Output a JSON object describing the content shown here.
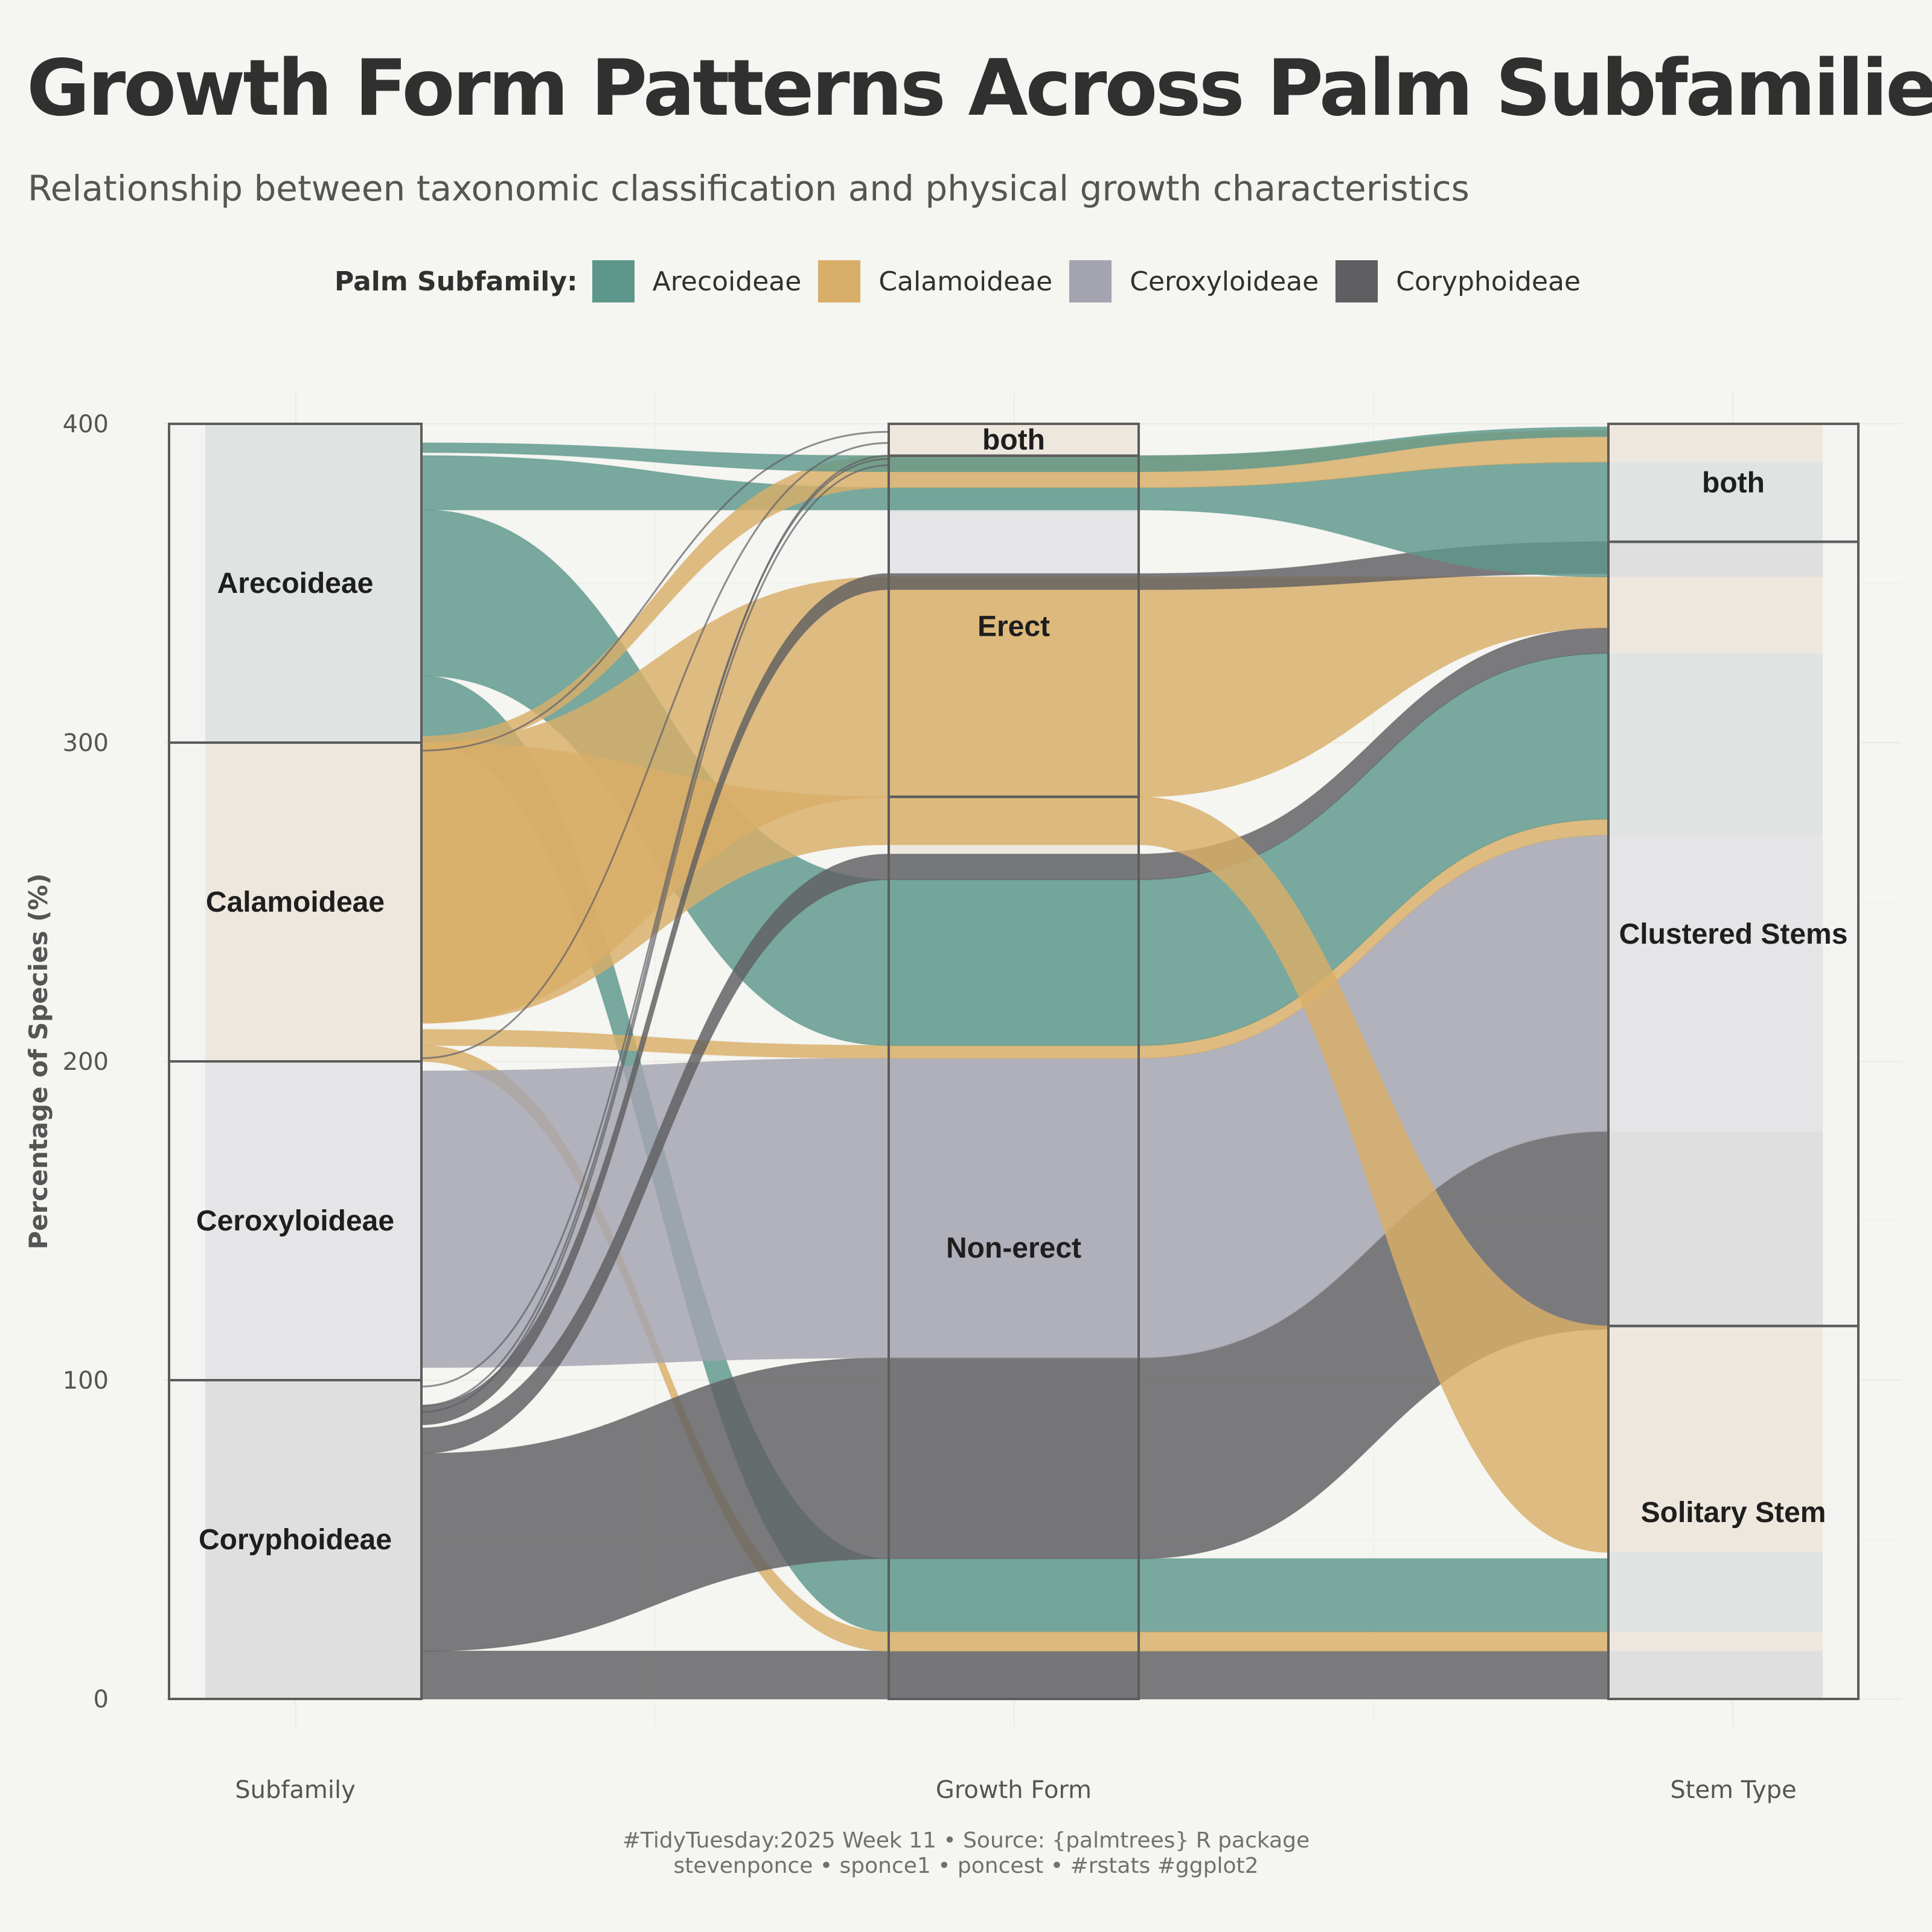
{
  "header": {
    "title": "Growth Form Patterns Across Palm Subfamilies",
    "subtitle": "Relationship between taxonomic classification and physical growth characteristics"
  },
  "legend": {
    "title": "Palm Subfamily:",
    "items": [
      {
        "label": "Arecoideae",
        "color": "#5d978b"
      },
      {
        "label": "Calamoideae",
        "color": "#d9ae68"
      },
      {
        "label": "Ceroxyloideae",
        "color": "#a3a4b0"
      },
      {
        "label": "Coryphoideae",
        "color": "#5f5f62"
      }
    ]
  },
  "chart_data": {
    "type": "alluvial",
    "ylabel": "Percentage of Species (%)",
    "ylim": [
      0,
      400
    ],
    "yticks": [
      0,
      100,
      200,
      300,
      400
    ],
    "grid": true,
    "axes": [
      {
        "label": "Subfamily",
        "strata": [
          {
            "name": "Coryphoideae",
            "from": 0,
            "to": 100
          },
          {
            "name": "Ceroxyloideae",
            "from": 100,
            "to": 200
          },
          {
            "name": "Calamoideae",
            "from": 200,
            "to": 300
          },
          {
            "name": "Arecoideae",
            "from": 300,
            "to": 400
          }
        ]
      },
      {
        "label": "Growth Form",
        "strata": [
          {
            "name": "Non-erect",
            "from": 0,
            "to": 283
          },
          {
            "name": "Erect",
            "from": 283,
            "to": 390
          },
          {
            "name": "both",
            "from": 390,
            "to": 400
          }
        ]
      },
      {
        "label": "Stem Type",
        "strata": [
          {
            "name": "Solitary Stem",
            "from": 0,
            "to": 117
          },
          {
            "name": "Clustered Stems",
            "from": 117,
            "to": 363
          },
          {
            "name": "both",
            "from": 363,
            "to": 400
          }
        ]
      }
    ],
    "flows": [
      {
        "subfamily": "Coryphoideae",
        "stops": [
          [
            0,
            15
          ],
          [
            0,
            15
          ],
          [
            0,
            15
          ]
        ]
      },
      {
        "subfamily": "Arecoideae",
        "stops": [
          [
            300,
            321
          ],
          [
            21,
            44
          ],
          [
            21,
            44
          ]
        ]
      },
      {
        "subfamily": "Calamoideae",
        "stops": [
          [
            200,
            205
          ],
          [
            15,
            21
          ],
          [
            15,
            21
          ]
        ]
      },
      {
        "subfamily": "Coryphoideae",
        "stops": [
          [
            15,
            77
          ],
          [
            44,
            107
          ],
          [
            116,
            178
          ]
        ]
      },
      {
        "subfamily": "Ceroxyloideae",
        "stops": [
          [
            104,
            197
          ],
          [
            107,
            201
          ],
          [
            178,
            271
          ]
        ]
      },
      {
        "subfamily": "Calamoideae",
        "stops": [
          [
            205,
            210
          ],
          [
            201,
            205
          ],
          [
            271,
            276
          ]
        ]
      },
      {
        "subfamily": "Arecoideae",
        "stops": [
          [
            321,
            373
          ],
          [
            205,
            257
          ],
          [
            276,
            328
          ]
        ]
      },
      {
        "subfamily": "Coryphoideae",
        "stops": [
          [
            77,
            85
          ],
          [
            257,
            265
          ],
          [
            328,
            336
          ]
        ]
      },
      {
        "subfamily": "Calamoideae",
        "stops": [
          [
            212,
            300
          ],
          [
            268,
            283
          ],
          [
            46,
            117
          ]
        ]
      },
      {
        "subfamily": "Calamoideae",
        "stops": [
          [
            212,
            300
          ],
          [
            283,
            352
          ],
          [
            336,
            352
          ]
        ]
      },
      {
        "subfamily": "Coryphoideae",
        "stops": [
          [
            86,
            92
          ],
          [
            348,
            353
          ],
          [
            353,
            363
          ]
        ]
      },
      {
        "subfamily": "Arecoideae",
        "stops": [
          [
            373,
            390
          ],
          [
            373,
            380
          ],
          [
            352,
            388
          ]
        ]
      },
      {
        "subfamily": "Calamoideae",
        "stops": [
          [
            298,
            302
          ],
          [
            380,
            390
          ],
          [
            388,
            398
          ]
        ]
      },
      {
        "subfamily": "Arecoideae",
        "stops": [
          [
            391,
            394
          ],
          [
            385,
            390
          ],
          [
            396,
            399
          ]
        ]
      }
    ]
  },
  "caption": {
    "line1": "#TidyTuesday:2025 Week 11 • Source: {palmtrees} R package",
    "line2": "stevenponce • sponce1 • poncest • #rstats #ggplot2"
  }
}
